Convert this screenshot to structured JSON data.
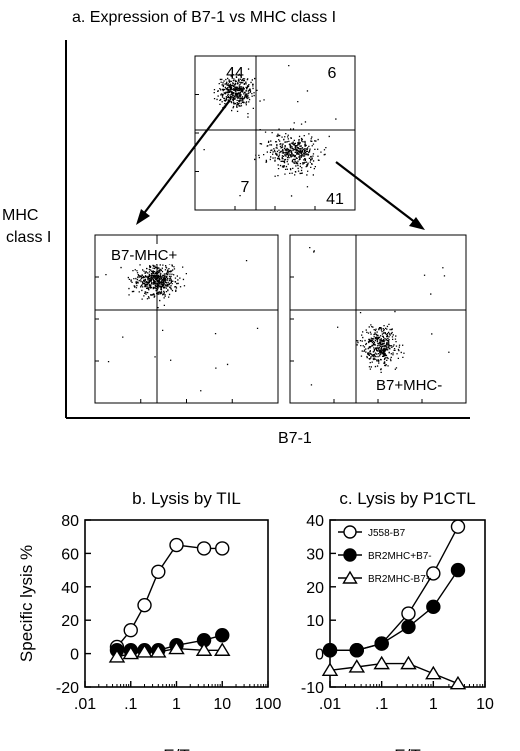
{
  "figure": {
    "panel_a_title": "a. Expression of B7-1 vs MHC class I",
    "y_label_line1": "MHC",
    "y_label_line2": "class I",
    "x_label": "B7-1"
  },
  "chart_data": [
    {
      "type": "scatter",
      "panel": "a",
      "title": "a. Expression of B7-1 vs MHC class I",
      "xlabel": "B7-1",
      "ylabel": "MHC class I",
      "plots": [
        {
          "quadrants": {
            "upper_left": "44",
            "upper_right": "6",
            "lower_left": "7",
            "lower_right": "41"
          },
          "clusters": [
            {
              "population": "B7-MHC+",
              "x": 0.25,
              "y": 0.77,
              "sx": 0.07,
              "sy": 0.06,
              "n": 420
            },
            {
              "population": "B7+MHC-",
              "x": 0.61,
              "y": 0.38,
              "sx": 0.1,
              "sy": 0.08,
              "n": 420
            }
          ]
        },
        {
          "label": "B7-MHC+",
          "clusters": [
            {
              "population": "B7-MHC+",
              "x": 0.33,
              "y": 0.73,
              "sx": 0.07,
              "sy": 0.06,
              "n": 520
            }
          ]
        },
        {
          "label": "B7+MHC-",
          "clusters": [
            {
              "population": "B7+MHC-",
              "x": 0.51,
              "y": 0.34,
              "sx": 0.06,
              "sy": 0.07,
              "n": 380
            }
          ]
        }
      ]
    },
    {
      "type": "line",
      "panel": "b",
      "title": "b. Lysis by TIL",
      "xlabel": "E/T",
      "ylabel": "Specific lysis %",
      "xscale": "log",
      "xlim": [
        0.01,
        100
      ],
      "ylim": [
        -20,
        80
      ],
      "xticks": [
        ".01",
        ".1",
        "1",
        "10",
        "100"
      ],
      "yticks": [
        "80",
        "60",
        "40",
        "20",
        "0",
        "-20"
      ],
      "series": [
        {
          "marker": "open-circle",
          "x": [
            0.05,
            0.1,
            0.2,
            0.4,
            1,
            4,
            10
          ],
          "values": [
            4,
            14,
            29,
            49,
            65,
            63,
            63
          ]
        },
        {
          "marker": "filled-circle",
          "x": [
            0.05,
            0.1,
            0.2,
            0.4,
            1,
            4,
            10
          ],
          "values": [
            2,
            2,
            2,
            2,
            5,
            8,
            11
          ]
        },
        {
          "marker": "open-triangle",
          "x": [
            0.05,
            0.1,
            0.2,
            0.4,
            1,
            4,
            10
          ],
          "values": [
            -2,
            0,
            1,
            1,
            3,
            2,
            2
          ]
        }
      ]
    },
    {
      "type": "line",
      "panel": "c",
      "title": "c. Lysis by P1CTL",
      "xlabel": "E/T",
      "ylabel": "",
      "xscale": "log",
      "xlim": [
        0.01,
        10
      ],
      "ylim": [
        -10,
        40
      ],
      "xticks": [
        ".01",
        ".1",
        "1",
        "10"
      ],
      "yticks": [
        "40",
        "30",
        "20",
        "10",
        "0",
        "-10"
      ],
      "legend_position": "top-left",
      "series": [
        {
          "name": "J558-B7",
          "marker": "open-circle",
          "x": [
            0.01,
            0.033,
            0.1,
            0.33,
            1,
            3
          ],
          "values": [
            1,
            1,
            3,
            12,
            24,
            38
          ]
        },
        {
          "name": "BR2MHC+B7-",
          "marker": "filled-circle",
          "x": [
            0.01,
            0.033,
            0.1,
            0.33,
            1,
            3
          ],
          "values": [
            1,
            1,
            3,
            8,
            14,
            25
          ]
        },
        {
          "name": "BR2MHC-B7+",
          "marker": "open-triangle",
          "x": [
            0.01,
            0.033,
            0.1,
            0.33,
            1,
            3
          ],
          "values": [
            -5,
            -4,
            -3,
            -3,
            -6,
            -9
          ]
        }
      ]
    }
  ]
}
